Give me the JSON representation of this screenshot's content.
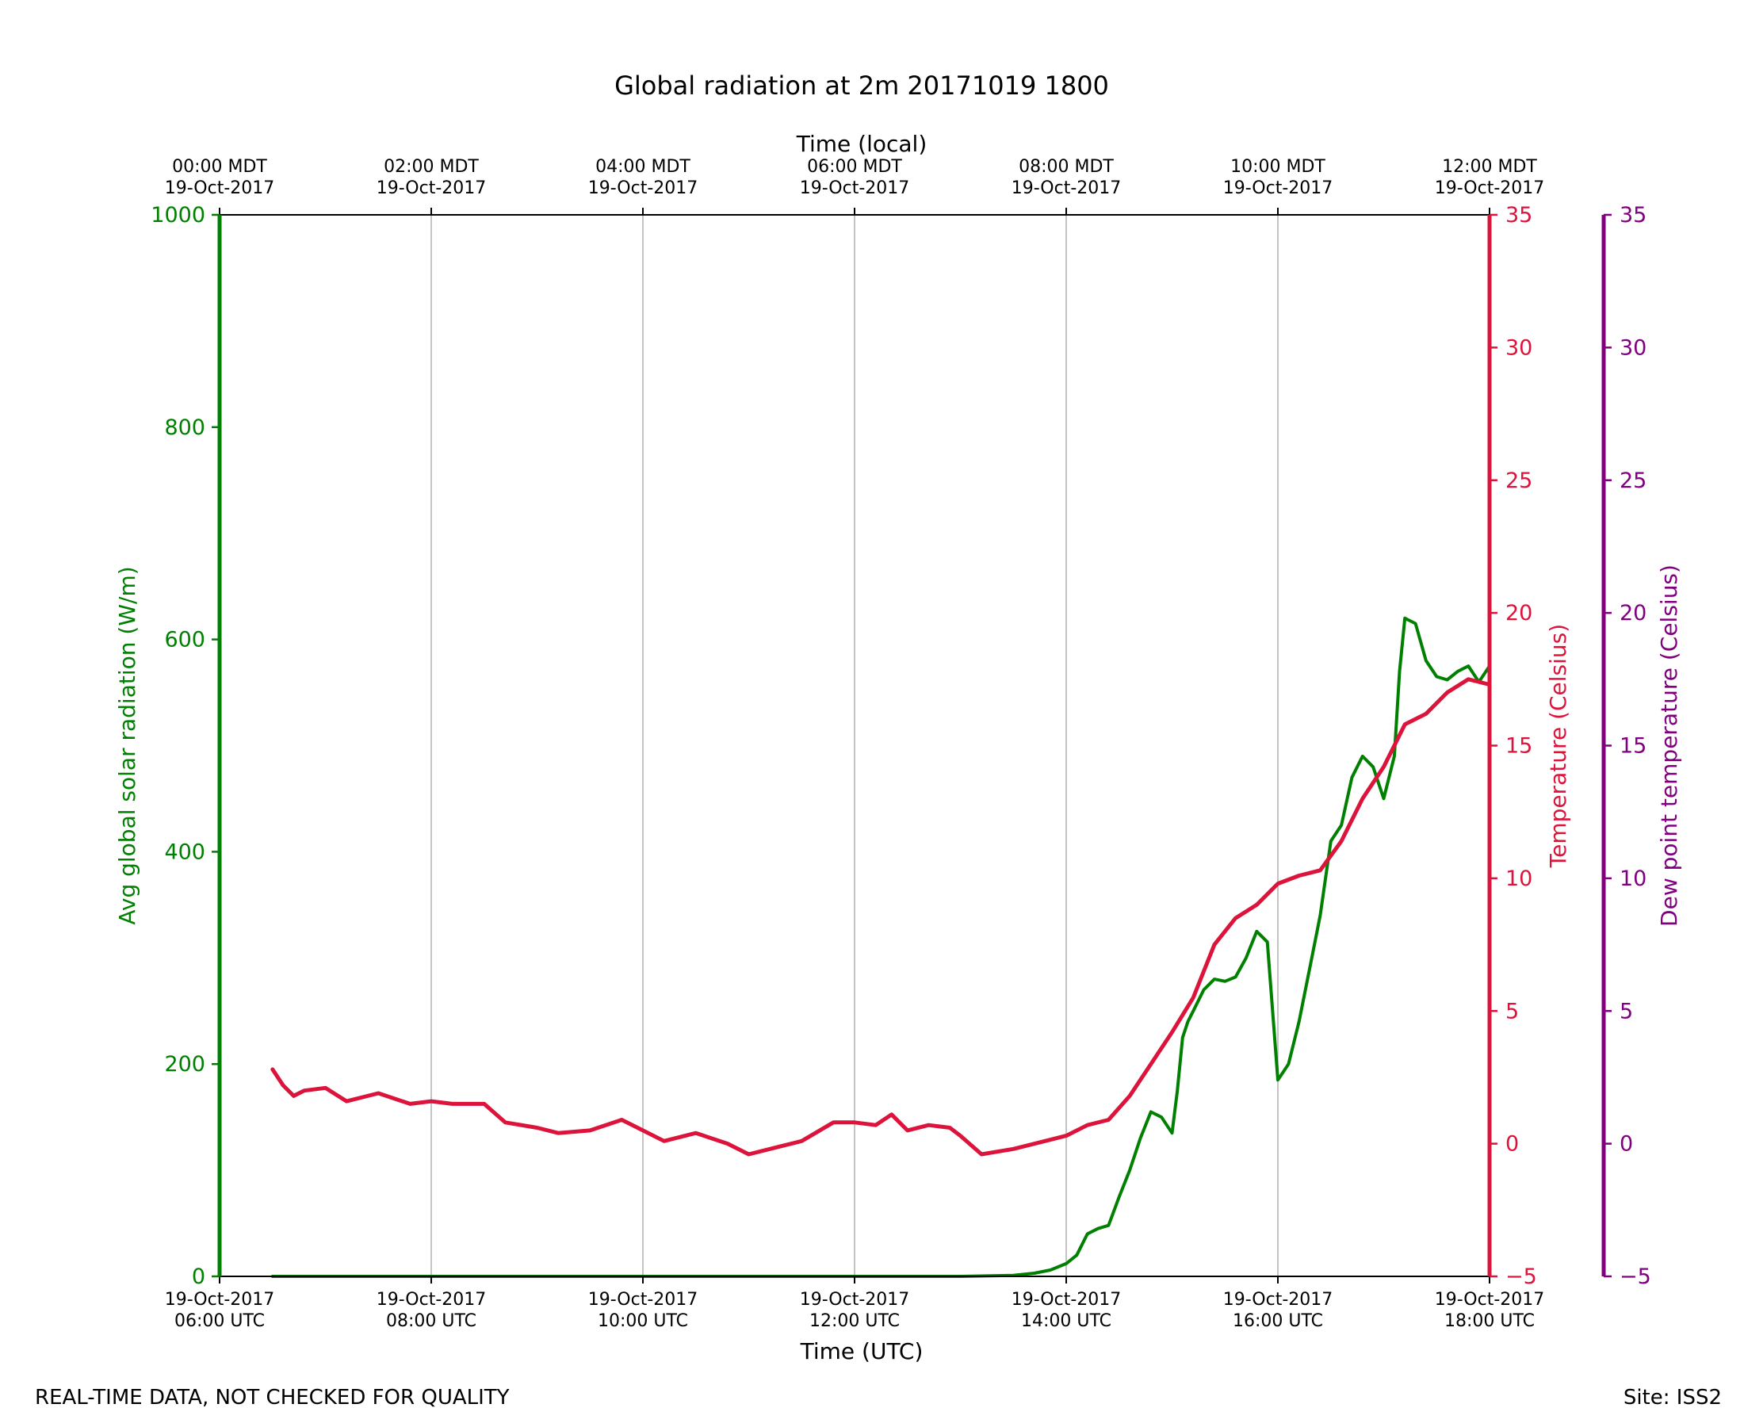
{
  "title": "Global radiation at 2m 20171019 1800",
  "footer": {
    "left": "REAL-TIME DATA, NOT CHECKED FOR QUALITY",
    "right": "Site: ISS2"
  },
  "colors": {
    "radiation": "#008000",
    "temperature": "#dc143c",
    "dewpoint": "#800080",
    "grid": "#b0b0b0"
  },
  "chart_data": {
    "type": "line",
    "title": "Global radiation at 2m 20171019 1800",
    "xlabel": "Time (UTC)",
    "xlabel_top": "Time (local)",
    "xlim_hours_utc": [
      6,
      18
    ],
    "x_ticks_bottom": [
      {
        "hour": 6,
        "line1": "19-Oct-2017",
        "line2": "06:00 UTC"
      },
      {
        "hour": 8,
        "line1": "19-Oct-2017",
        "line2": "08:00 UTC"
      },
      {
        "hour": 10,
        "line1": "19-Oct-2017",
        "line2": "10:00 UTC"
      },
      {
        "hour": 12,
        "line1": "19-Oct-2017",
        "line2": "12:00 UTC"
      },
      {
        "hour": 14,
        "line1": "19-Oct-2017",
        "line2": "14:00 UTC"
      },
      {
        "hour": 16,
        "line1": "19-Oct-2017",
        "line2": "16:00 UTC"
      },
      {
        "hour": 18,
        "line1": "19-Oct-2017",
        "line2": "18:00 UTC"
      }
    ],
    "x_ticks_top": [
      {
        "hour": 6,
        "line1": "00:00 MDT",
        "line2": "19-Oct-2017"
      },
      {
        "hour": 8,
        "line1": "02:00 MDT",
        "line2": "19-Oct-2017"
      },
      {
        "hour": 10,
        "line1": "04:00 MDT",
        "line2": "19-Oct-2017"
      },
      {
        "hour": 12,
        "line1": "06:00 MDT",
        "line2": "19-Oct-2017"
      },
      {
        "hour": 14,
        "line1": "08:00 MDT",
        "line2": "19-Oct-2017"
      },
      {
        "hour": 16,
        "line1": "10:00 MDT",
        "line2": "19-Oct-2017"
      },
      {
        "hour": 18,
        "line1": "12:00 MDT",
        "line2": "19-Oct-2017"
      }
    ],
    "axes": {
      "radiation": {
        "label": "Avg global solar radiation (W/m)",
        "ylim": [
          0,
          1000
        ],
        "ticks": [
          "0",
          "200",
          "400",
          "600",
          "800",
          "1000"
        ]
      },
      "temperature": {
        "label": "Temperature (Celsius)",
        "ylim": [
          -5,
          35
        ],
        "ticks": [
          "−5",
          "0",
          "5",
          "10",
          "15",
          "20",
          "25",
          "30",
          "35"
        ]
      },
      "dewpoint": {
        "label": "Dew point temperature (Celsius)",
        "ylim": [
          -5,
          35
        ],
        "ticks": [
          "−5",
          "0",
          "5",
          "10",
          "15",
          "20",
          "25",
          "30",
          "35"
        ]
      }
    },
    "series": [
      {
        "name": "Avg global solar radiation",
        "axis": "radiation",
        "x": [
          6.5,
          7,
          8,
          9,
          10,
          11,
          12,
          13,
          13.5,
          13.7,
          13.85,
          14,
          14.1,
          14.2,
          14.3,
          14.4,
          14.5,
          14.6,
          14.7,
          14.8,
          14.9,
          15,
          15.05,
          15.1,
          15.15,
          15.2,
          15.3,
          15.4,
          15.5,
          15.6,
          15.7,
          15.8,
          15.9,
          16,
          16.1,
          16.2,
          16.3,
          16.4,
          16.5,
          16.6,
          16.7,
          16.8,
          16.9,
          17,
          17.1,
          17.15,
          17.2,
          17.3,
          17.4,
          17.5,
          17.6,
          17.7,
          17.8,
          17.9,
          18
        ],
        "values": [
          0,
          0,
          0,
          0,
          0,
          0,
          0,
          0,
          1,
          3,
          6,
          12,
          20,
          40,
          45,
          48,
          75,
          100,
          130,
          155,
          150,
          135,
          175,
          225,
          240,
          250,
          270,
          280,
          278,
          282,
          300,
          325,
          315,
          185,
          200,
          240,
          290,
          340,
          410,
          425,
          470,
          490,
          480,
          450,
          490,
          570,
          620,
          615,
          580,
          565,
          562,
          570,
          575,
          560,
          575
        ]
      },
      {
        "name": "Temperature",
        "axis": "temperature",
        "x": [
          6.5,
          6.6,
          6.7,
          6.8,
          7,
          7.2,
          7.5,
          7.8,
          8,
          8.2,
          8.5,
          8.7,
          9,
          9.2,
          9.5,
          9.8,
          10,
          10.2,
          10.5,
          10.8,
          11,
          11.2,
          11.5,
          11.8,
          12,
          12.2,
          12.35,
          12.5,
          12.7,
          12.9,
          13,
          13.2,
          13.5,
          13.8,
          14,
          14.2,
          14.4,
          14.6,
          14.8,
          15,
          15.2,
          15.4,
          15.6,
          15.8,
          16,
          16.2,
          16.4,
          16.6,
          16.8,
          17,
          17.2,
          17.4,
          17.6,
          17.8,
          18
        ],
        "values": [
          2.8,
          2.2,
          1.8,
          2.0,
          2.1,
          1.6,
          1.9,
          1.5,
          1.6,
          1.5,
          1.5,
          0.8,
          0.6,
          0.4,
          0.5,
          0.9,
          0.5,
          0.1,
          0.4,
          0.0,
          -0.4,
          -0.2,
          0.1,
          0.8,
          0.8,
          0.7,
          1.1,
          0.5,
          0.7,
          0.6,
          0.3,
          -0.4,
          -0.2,
          0.1,
          0.3,
          0.7,
          0.9,
          1.8,
          3.0,
          4.2,
          5.5,
          7.5,
          8.5,
          9.0,
          9.8,
          10.1,
          10.3,
          11.4,
          13.0,
          14.2,
          15.8,
          16.2,
          17.0,
          17.5,
          17.3
        ]
      },
      {
        "name": "Dew point temperature",
        "axis": "dewpoint",
        "x": [],
        "values": []
      }
    ]
  }
}
